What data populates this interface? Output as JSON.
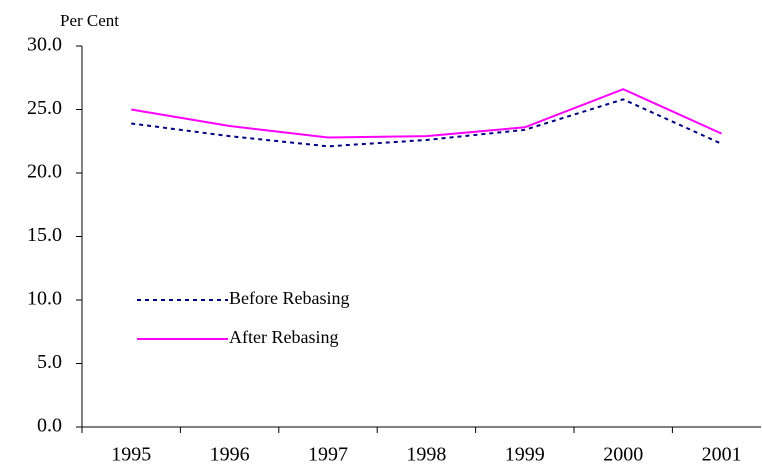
{
  "chart_data": {
    "type": "line",
    "y_label": "Per Cent",
    "categories": [
      "1995",
      "1996",
      "1997",
      "1998",
      "1999",
      "2000",
      "2001"
    ],
    "series": [
      {
        "name": "Before Rebasing",
        "color": "#000080",
        "style": "dotted",
        "values": [
          23.9,
          22.9,
          22.1,
          22.6,
          23.4,
          25.8,
          22.3
        ]
      },
      {
        "name": "After Rebasing",
        "color": "#ff00ff",
        "style": "solid",
        "values": [
          25.0,
          23.7,
          22.8,
          22.9,
          23.6,
          26.6,
          23.1
        ]
      }
    ],
    "ylim": [
      0,
      30
    ],
    "yticks": [
      {
        "value": 0,
        "label": "0.0"
      },
      {
        "value": 5,
        "label": "5.0"
      },
      {
        "value": 10,
        "label": "10.0"
      },
      {
        "value": 15,
        "label": "15.0"
      },
      {
        "value": 20,
        "label": "20.0"
      },
      {
        "value": 25,
        "label": "25.0"
      },
      {
        "value": 30,
        "label": "30.0"
      }
    ],
    "grid": false,
    "legend": "left"
  }
}
